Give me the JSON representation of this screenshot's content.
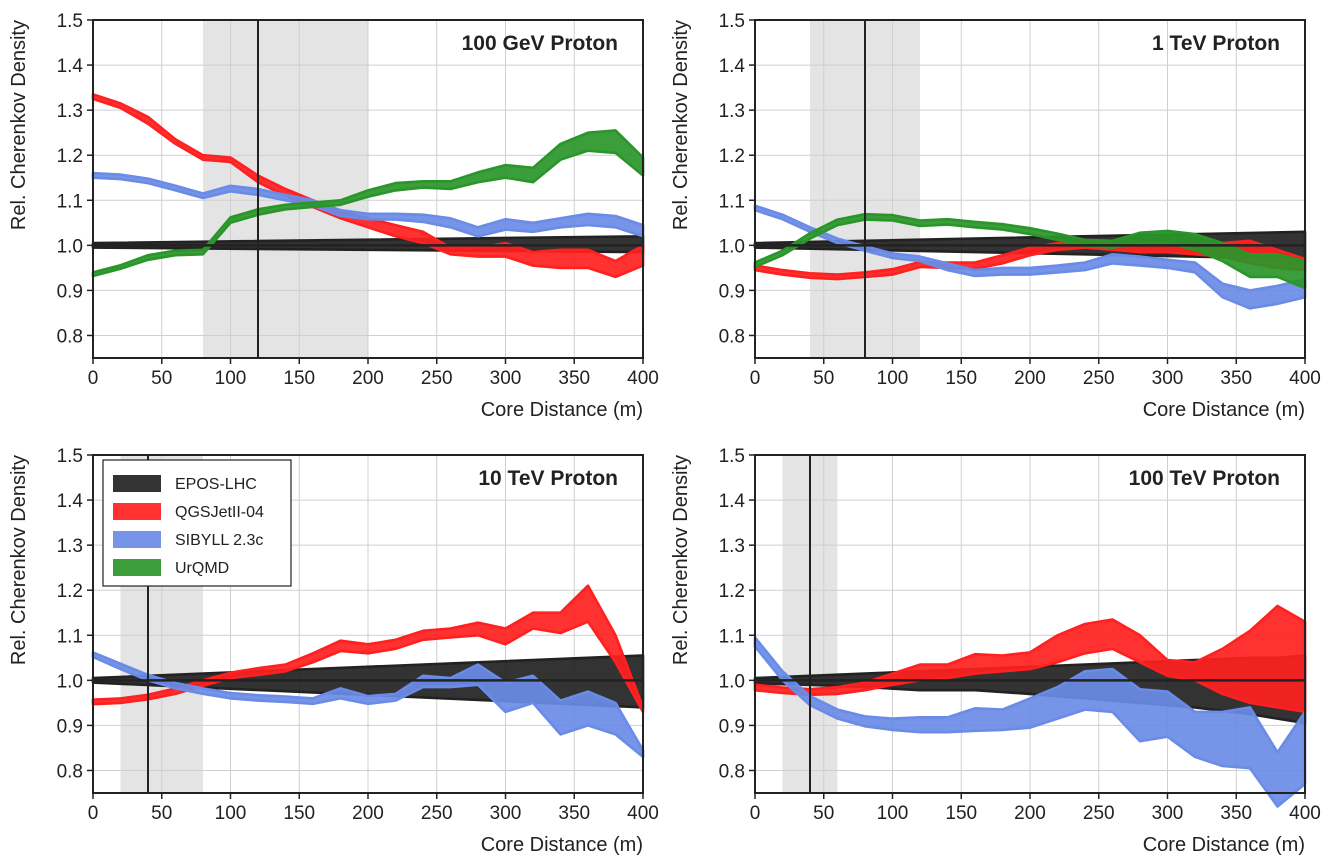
{
  "figure": {
    "ylabel": "Rel. Cherenkov Density",
    "xlabel": "Core Distance (m)"
  },
  "legend": [
    {
      "name": "EPOS-LHC",
      "color": "#222222"
    },
    {
      "name": "QGSJetII-04",
      "color": "#ff2020"
    },
    {
      "name": "SIBYLL 2.3c",
      "color": "#6a8be6"
    },
    {
      "name": "UrQMD",
      "color": "#2a962a"
    }
  ],
  "chart_data": [
    {
      "type": "area",
      "title": "100 GeV Proton",
      "xlabel": "Core Distance (m)",
      "ylabel": "Rel. Cherenkov Density",
      "xlim": [
        0,
        400
      ],
      "ylim": [
        0.75,
        1.5
      ],
      "xticks": [
        0,
        50,
        100,
        150,
        200,
        250,
        300,
        350,
        400
      ],
      "yticks": [
        0.8,
        0.9,
        1.0,
        1.1,
        1.2,
        1.3,
        1.4,
        1.5
      ],
      "grid": true,
      "shaded_x": [
        80,
        200
      ],
      "vline_x": 120,
      "series": [
        {
          "name": "EPOS-LHC",
          "color": "#222222",
          "x": [
            0,
            400
          ],
          "low": [
            0.995,
            0.985
          ],
          "high": [
            1.005,
            1.02
          ]
        },
        {
          "name": "QGSJetII-04",
          "color": "#ff2020",
          "x": [
            0,
            20,
            40,
            60,
            80,
            100,
            120,
            140,
            160,
            180,
            200,
            220,
            240,
            260,
            280,
            300,
            320,
            340,
            360,
            380,
            400
          ],
          "low": [
            1.325,
            1.305,
            1.27,
            1.225,
            1.19,
            1.185,
            1.14,
            1.11,
            1.085,
            1.06,
            1.04,
            1.02,
            1.005,
            0.98,
            0.975,
            0.975,
            0.955,
            0.95,
            0.95,
            0.93,
            0.955
          ],
          "high": [
            1.335,
            1.315,
            1.285,
            1.235,
            1.2,
            1.195,
            1.155,
            1.125,
            1.1,
            1.075,
            1.06,
            1.045,
            1.03,
            0.995,
            0.995,
            1.005,
            0.985,
            0.99,
            0.99,
            0.965,
            1.0
          ]
        },
        {
          "name": "SIBYLL 2.3c",
          "color": "#6a8be6",
          "x": [
            0,
            20,
            40,
            60,
            80,
            100,
            120,
            140,
            160,
            180,
            200,
            220,
            240,
            260,
            280,
            300,
            320,
            340,
            360,
            380,
            400
          ],
          "low": [
            1.15,
            1.147,
            1.138,
            1.122,
            1.105,
            1.12,
            1.112,
            1.1,
            1.088,
            1.065,
            1.058,
            1.057,
            1.052,
            1.04,
            1.02,
            1.035,
            1.03,
            1.04,
            1.045,
            1.04,
            1.02
          ],
          "high": [
            1.16,
            1.157,
            1.148,
            1.132,
            1.115,
            1.132,
            1.125,
            1.112,
            1.1,
            1.078,
            1.07,
            1.07,
            1.068,
            1.06,
            1.04,
            1.058,
            1.05,
            1.06,
            1.07,
            1.065,
            1.045
          ]
        },
        {
          "name": "UrQMD",
          "color": "#2a962a",
          "x": [
            0,
            20,
            40,
            60,
            80,
            100,
            120,
            140,
            160,
            180,
            200,
            220,
            240,
            260,
            280,
            300,
            320,
            340,
            360,
            380,
            400
          ],
          "low": [
            0.932,
            0.948,
            0.968,
            0.978,
            0.98,
            1.05,
            1.068,
            1.08,
            1.085,
            1.09,
            1.108,
            1.122,
            1.128,
            1.125,
            1.14,
            1.15,
            1.14,
            1.19,
            1.21,
            1.205,
            1.155
          ],
          "high": [
            0.94,
            0.956,
            0.978,
            0.988,
            0.99,
            1.062,
            1.08,
            1.09,
            1.095,
            1.1,
            1.122,
            1.138,
            1.142,
            1.142,
            1.162,
            1.178,
            1.172,
            1.225,
            1.25,
            1.255,
            1.195
          ]
        }
      ]
    },
    {
      "type": "area",
      "title": "1 TeV Proton",
      "xlabel": "Core Distance (m)",
      "ylabel": "Rel. Cherenkov Density",
      "xlim": [
        0,
        400
      ],
      "ylim": [
        0.75,
        1.5
      ],
      "xticks": [
        0,
        50,
        100,
        150,
        200,
        250,
        300,
        350,
        400
      ],
      "yticks": [
        0.8,
        0.9,
        1.0,
        1.1,
        1.2,
        1.3,
        1.4,
        1.5
      ],
      "grid": true,
      "shaded_x": [
        40,
        120
      ],
      "vline_x": 80,
      "series": [
        {
          "name": "EPOS-LHC",
          "color": "#222222",
          "x": [
            0,
            400
          ],
          "low": [
            0.995,
            0.97
          ],
          "high": [
            1.005,
            1.03
          ]
        },
        {
          "name": "QGSJetII-04",
          "color": "#ff2020",
          "x": [
            0,
            20,
            40,
            60,
            80,
            100,
            120,
            140,
            160,
            180,
            200,
            220,
            240,
            260,
            280,
            300,
            320,
            340,
            360,
            380,
            400
          ],
          "low": [
            0.945,
            0.935,
            0.928,
            0.925,
            0.93,
            0.935,
            0.952,
            0.95,
            0.948,
            0.96,
            0.978,
            0.99,
            0.995,
            0.99,
            0.985,
            0.985,
            0.98,
            0.975,
            0.96,
            0.95,
            0.945
          ],
          "high": [
            0.955,
            0.945,
            0.938,
            0.935,
            0.94,
            0.947,
            0.963,
            0.962,
            0.962,
            0.978,
            0.995,
            1.005,
            1.005,
            1.005,
            1.0,
            1.0,
            1.0,
            1.005,
            1.01,
            0.99,
            0.97
          ]
        },
        {
          "name": "SIBYLL 2.3c",
          "color": "#6a8be6",
          "x": [
            0,
            20,
            40,
            60,
            80,
            100,
            120,
            140,
            160,
            180,
            200,
            220,
            240,
            260,
            280,
            300,
            320,
            340,
            360,
            380,
            400
          ],
          "low": [
            1.078,
            1.058,
            1.03,
            1.005,
            0.988,
            0.972,
            0.965,
            0.945,
            0.932,
            0.935,
            0.935,
            0.94,
            0.945,
            0.96,
            0.955,
            0.95,
            0.94,
            0.885,
            0.86,
            0.87,
            0.885
          ],
          "high": [
            1.088,
            1.068,
            1.04,
            1.015,
            0.998,
            0.982,
            0.975,
            0.96,
            0.945,
            0.95,
            0.95,
            0.955,
            0.962,
            0.98,
            0.975,
            0.968,
            0.962,
            0.915,
            0.9,
            0.91,
            0.925
          ]
        },
        {
          "name": "UrQMD",
          "color": "#2a962a",
          "x": [
            0,
            20,
            40,
            60,
            80,
            100,
            120,
            140,
            160,
            180,
            200,
            220,
            240,
            260,
            280,
            300,
            320,
            340,
            360,
            380,
            400
          ],
          "low": [
            0.952,
            0.978,
            1.015,
            1.045,
            1.057,
            1.055,
            1.043,
            1.046,
            1.04,
            1.035,
            1.025,
            1.012,
            0.998,
            0.995,
            1.005,
            1.005,
            0.99,
            0.965,
            0.93,
            0.93,
            0.905
          ],
          "high": [
            0.962,
            0.988,
            1.027,
            1.057,
            1.069,
            1.067,
            1.055,
            1.058,
            1.052,
            1.047,
            1.038,
            1.026,
            1.012,
            1.01,
            1.028,
            1.032,
            1.025,
            1.005,
            0.98,
            0.98,
            0.965
          ]
        }
      ]
    },
    {
      "type": "area",
      "title": "10 TeV Proton",
      "xlabel": "Core Distance (m)",
      "ylabel": "Rel. Cherenkov Density",
      "xlim": [
        0,
        400
      ],
      "ylim": [
        0.75,
        1.5
      ],
      "xticks": [
        0,
        50,
        100,
        150,
        200,
        250,
        300,
        350,
        400
      ],
      "yticks": [
        0.8,
        0.9,
        1.0,
        1.1,
        1.2,
        1.3,
        1.4,
        1.5
      ],
      "grid": true,
      "shaded_x": [
        20,
        80
      ],
      "vline_x": 40,
      "legend_position": "top-left",
      "series": [
        {
          "name": "EPOS-LHC",
          "color": "#222222",
          "x": [
            0,
            400
          ],
          "low": [
            0.995,
            0.94
          ],
          "high": [
            1.005,
            1.055
          ]
        },
        {
          "name": "QGSJetII-04",
          "color": "#ff2020",
          "x": [
            0,
            20,
            40,
            60,
            80,
            100,
            120,
            140,
            160,
            180,
            200,
            220,
            240,
            260,
            280,
            300,
            320,
            340,
            360,
            380,
            400
          ],
          "low": [
            0.947,
            0.95,
            0.958,
            0.97,
            0.988,
            1.005,
            1.012,
            1.02,
            1.04,
            1.065,
            1.06,
            1.07,
            1.09,
            1.095,
            1.1,
            1.08,
            1.115,
            1.105,
            1.13,
            1.04,
            0.93
          ],
          "high": [
            0.957,
            0.96,
            0.968,
            0.982,
            1.0,
            1.017,
            1.027,
            1.035,
            1.06,
            1.088,
            1.08,
            1.09,
            1.11,
            1.115,
            1.128,
            1.115,
            1.15,
            1.15,
            1.21,
            1.1,
            0.94
          ]
        },
        {
          "name": "SIBYLL 2.3c",
          "color": "#6a8be6",
          "x": [
            0,
            20,
            40,
            60,
            80,
            100,
            120,
            140,
            160,
            180,
            200,
            220,
            240,
            260,
            280,
            300,
            320,
            340,
            360,
            380,
            400
          ],
          "low": [
            1.052,
            1.025,
            1.0,
            0.982,
            0.97,
            0.96,
            0.955,
            0.952,
            0.948,
            0.96,
            0.948,
            0.955,
            0.985,
            0.985,
            0.99,
            0.93,
            0.95,
            0.88,
            0.9,
            0.88,
            0.83
          ],
          "high": [
            1.062,
            1.037,
            1.012,
            0.994,
            0.982,
            0.972,
            0.967,
            0.964,
            0.96,
            0.982,
            0.965,
            0.97,
            1.01,
            1.005,
            1.035,
            0.995,
            1.01,
            0.955,
            0.975,
            0.95,
            0.845
          ]
        }
      ]
    },
    {
      "type": "area",
      "title": "100 TeV Proton",
      "xlabel": "Core Distance (m)",
      "ylabel": "Rel. Cherenkov Density",
      "xlim": [
        0,
        400
      ],
      "ylim": [
        0.75,
        1.5
      ],
      "xticks": [
        0,
        50,
        100,
        150,
        200,
        250,
        300,
        350,
        400
      ],
      "yticks": [
        0.8,
        0.9,
        1.0,
        1.1,
        1.2,
        1.3,
        1.4,
        1.5
      ],
      "grid": true,
      "shaded_x": [
        20,
        60
      ],
      "vline_x": 40,
      "series": [
        {
          "name": "EPOS-LHC",
          "color": "#222222",
          "x": [
            0,
            40,
            80,
            120,
            160,
            200,
            240,
            280,
            320,
            360,
            380,
            400
          ],
          "low": [
            0.993,
            0.99,
            0.985,
            0.978,
            0.978,
            0.97,
            0.96,
            0.95,
            0.94,
            0.925,
            0.915,
            0.905
          ],
          "high": [
            1.005,
            1.01,
            1.015,
            1.02,
            1.025,
            1.03,
            1.035,
            1.04,
            1.045,
            1.05,
            1.05,
            1.055
          ]
        },
        {
          "name": "QGSJetII-04",
          "color": "#ff2020",
          "x": [
            0,
            20,
            40,
            60,
            80,
            100,
            120,
            140,
            160,
            180,
            200,
            220,
            240,
            260,
            280,
            300,
            320,
            340,
            360,
            380,
            400
          ],
          "low": [
            0.978,
            0.972,
            0.968,
            0.97,
            0.978,
            0.99,
            1.0,
            1.005,
            1.015,
            1.02,
            1.025,
            1.04,
            1.06,
            1.07,
            1.04,
            1.01,
            1.0,
            0.97,
            0.95,
            0.94,
            0.93
          ],
          "high": [
            0.99,
            0.984,
            0.98,
            0.985,
            0.995,
            1.015,
            1.035,
            1.035,
            1.058,
            1.055,
            1.062,
            1.1,
            1.125,
            1.135,
            1.1,
            1.045,
            1.04,
            1.07,
            1.11,
            1.165,
            1.13
          ]
        },
        {
          "name": "SIBYLL 2.3c",
          "color": "#6a8be6",
          "x": [
            0,
            20,
            40,
            60,
            80,
            100,
            120,
            140,
            160,
            180,
            200,
            220,
            240,
            260,
            280,
            300,
            320,
            340,
            360,
            380,
            400
          ],
          "low": [
            1.075,
            1.0,
            0.945,
            0.915,
            0.898,
            0.89,
            0.885,
            0.885,
            0.888,
            0.89,
            0.895,
            0.915,
            0.935,
            0.93,
            0.865,
            0.875,
            0.83,
            0.81,
            0.805,
            0.72,
            0.77
          ],
          "high": [
            1.095,
            1.02,
            0.965,
            0.935,
            0.92,
            0.915,
            0.918,
            0.918,
            0.938,
            0.935,
            0.96,
            0.985,
            1.02,
            1.025,
            0.98,
            0.975,
            0.93,
            0.93,
            0.94,
            0.84,
            0.93
          ]
        }
      ]
    }
  ]
}
